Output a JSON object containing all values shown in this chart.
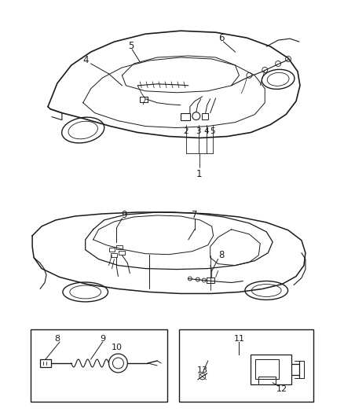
{
  "bg_color": "#ffffff",
  "line_color": "#1a1a1a",
  "figure_width": 4.38,
  "figure_height": 5.33,
  "dpi": 100
}
